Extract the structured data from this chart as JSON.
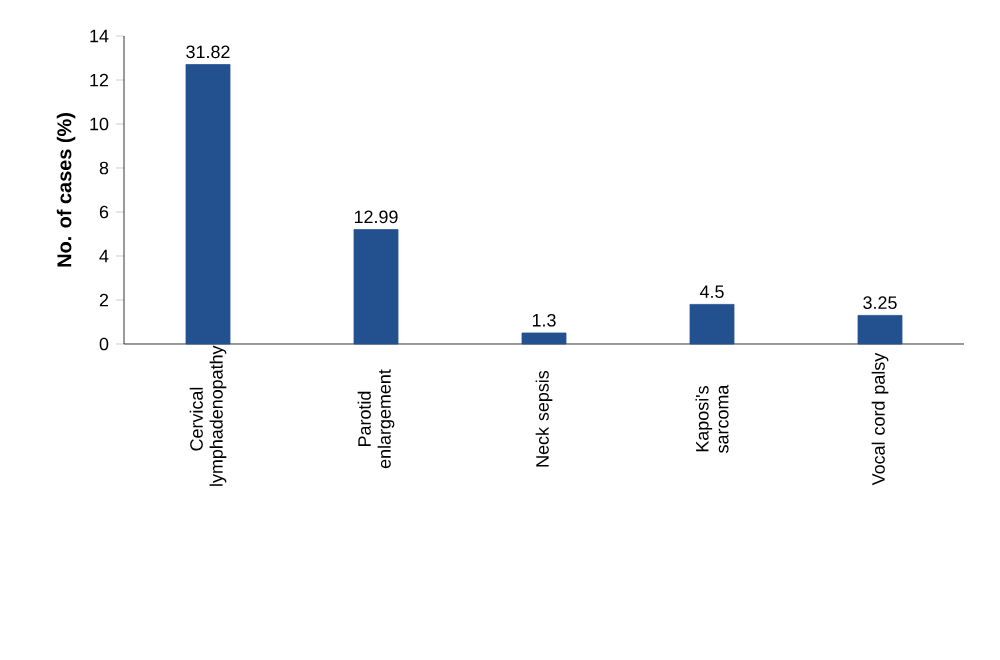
{
  "chart_data": {
    "type": "bar",
    "ylabel": "**No. of cases (%)**",
    "categories": [
      "Cervical lymphadenopathy",
      "Parotid enlargement",
      "Neck sepsis",
      "Kaposi's sarcoma",
      "Vocal cord palsy"
    ],
    "values": [
      12.7,
      5.2,
      0.5,
      1.8,
      1.3
    ],
    "annotations": [
      {
        "text": "31.82",
        "x": "Cervical lymphadenopathy",
        "y": 12.7
      },
      {
        "text": "12.99",
        "x": "Parotid enlargement",
        "y": 5.2
      },
      {
        "text": "1.3",
        "x": "Neck sepsis",
        "y": 0.5
      },
      {
        "text": "4.5",
        "x": "Kaposi's sarcoma",
        "y": 1.8
      },
      {
        "text": "3.25",
        "x": "Vocal cord palsy",
        "y": 1.3
      }
    ],
    "color": "#23508f",
    "ylim": [
      0,
      14
    ],
    "yticks": [
      0,
      2,
      4,
      6,
      8,
      10,
      12,
      14
    ],
    "grid": false
  }
}
